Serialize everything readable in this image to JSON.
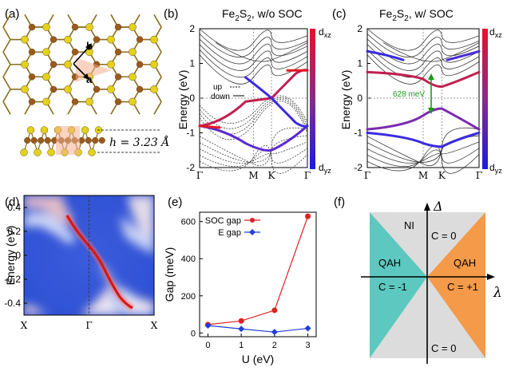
{
  "panels": {
    "a": {
      "label": "(a)",
      "vec_a": "a",
      "vec_b": "b",
      "height_label": "h = 3.23 Å"
    },
    "b": {
      "label": "(b)",
      "title_pre": "Fe",
      "title_sub1": "2",
      "title_mid": "S",
      "title_sub2": "2",
      "title_post": ", w/o SOC",
      "ylabel": "Energy (eV)",
      "colorbar_top": "d",
      "colorbar_top_sub": "xz",
      "colorbar_bottom": "d",
      "colorbar_bottom_sub": "yz",
      "legend_up": "up",
      "legend_down": "down"
    },
    "c": {
      "label": "(c)",
      "title_pre": "Fe",
      "title_sub1": "2",
      "title_mid": "S",
      "title_sub2": "2",
      "title_post": ", w/ SOC",
      "gap_annotation": "628 meV",
      "colorbar_top": "d",
      "colorbar_top_sub": "xz",
      "colorbar_bottom": "d",
      "colorbar_bottom_sub": "yz"
    },
    "d": {
      "label": "(d)",
      "ylabel": "Energy (eV)"
    },
    "e": {
      "label": "(e)",
      "legend_soc": "SOC gap",
      "legend_e": "E gap"
    },
    "f": {
      "label": "(f)",
      "axis_v": "Δ",
      "axis_h": "λ",
      "ni": "NI",
      "c_top": "C = 0",
      "c_bottom": "C = 0",
      "qah_left": "QAH",
      "qah_right": "QAH",
      "c_left": "C = -1",
      "c_right": "C = +1",
      "color_left": "#5cc8c0",
      "color_right": "#f49a48",
      "color_bg": "#dcdcdc"
    }
  },
  "chart_data": [
    {
      "panel": "b",
      "type": "line",
      "xlabel": "",
      "ylabel": "Energy (eV)",
      "ylim": [
        -2,
        2
      ],
      "yticks": [
        -2,
        -1,
        0,
        1,
        2
      ],
      "ticks": [
        {
          "label": "Γ",
          "x": 0.0
        },
        {
          "label": "M",
          "x": 0.5
        },
        {
          "label": "K",
          "x": 0.667
        },
        {
          "label": "Γ",
          "x": 1.0
        }
      ]
    },
    {
      "panel": "c",
      "type": "line",
      "xlabel": "",
      "ylabel": "",
      "ylim": [
        -2,
        2
      ],
      "yticks": [
        -2,
        -1,
        0,
        1,
        2
      ],
      "ticks": [
        {
          "label": "Γ",
          "x": 0.0
        },
        {
          "label": "M",
          "x": 0.5
        },
        {
          "label": "K",
          "x": 0.667
        },
        {
          "label": "Γ",
          "x": 1.0
        }
      ]
    },
    {
      "panel": "d",
      "type": "heatmap",
      "ylabel": "Energy (eV)",
      "ylim": [
        -0.5,
        0.5
      ],
      "yticks": [
        -0.4,
        -0.2,
        0,
        0.2,
        0.4
      ],
      "ticks": [
        {
          "label": "X",
          "x": 0.0
        },
        {
          "label": "Γ",
          "x": 0.5
        },
        {
          "label": "X",
          "x": 1.0
        }
      ]
    },
    {
      "panel": "e",
      "type": "line",
      "xlabel": "U (eV)",
      "ylabel": "Gap (meV)",
      "xlim": [
        -0.25,
        3.25
      ],
      "ylim": [
        -20,
        650
      ],
      "xticks": [
        0,
        1,
        2,
        3
      ],
      "yticks": [
        0,
        200,
        400,
        600
      ],
      "x": [
        0,
        1,
        2,
        3
      ],
      "series": [
        {
          "name": "SOC gap",
          "values": [
            45,
            65,
            122,
            628
          ],
          "color": "#e02020"
        },
        {
          "name": "E gap",
          "values": [
            40,
            22,
            5,
            25
          ],
          "color": "#1f3fd8"
        }
      ],
      "legend": "top-left"
    }
  ]
}
